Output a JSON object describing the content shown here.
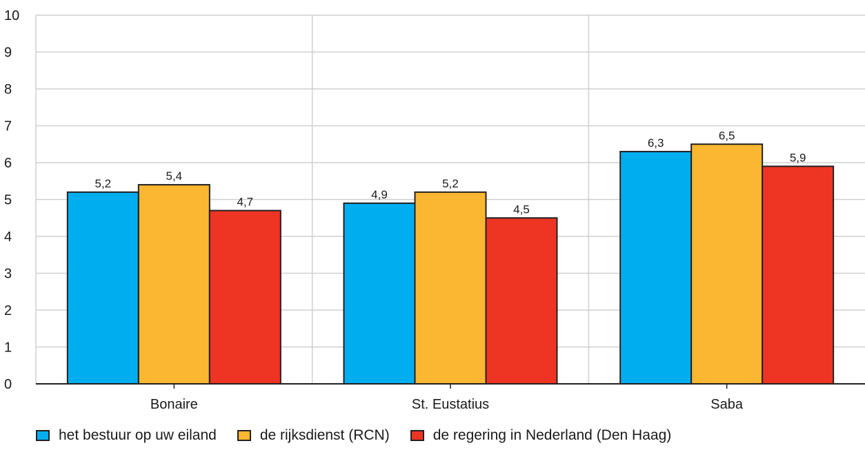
{
  "chart_data": {
    "type": "bar",
    "categories": [
      "Bonaire",
      "St. Eustatius",
      "Saba"
    ],
    "series": [
      {
        "name": "het bestuur op uw eiland",
        "color": "#00aeef",
        "values": [
          5.2,
          4.9,
          6.3
        ],
        "labels": [
          "5,2",
          "4,9",
          "6,3"
        ]
      },
      {
        "name": "de rijksdienst (RCN)",
        "color": "#fbb731",
        "values": [
          5.4,
          5.2,
          6.5
        ],
        "labels": [
          "5,4",
          "5,2",
          "6,5"
        ]
      },
      {
        "name": "de regering in Nederland (Den Haag)",
        "color": "#ee3524",
        "values": [
          4.7,
          4.5,
          5.9
        ],
        "labels": [
          "4,7",
          "4,5",
          "5,9"
        ]
      }
    ],
    "ylim": [
      0,
      10
    ],
    "yticks": [
      "0",
      "1",
      "2",
      "3",
      "4",
      "5",
      "6",
      "7",
      "8",
      "9",
      "10"
    ],
    "grid": true,
    "legend_position": "bottom"
  }
}
